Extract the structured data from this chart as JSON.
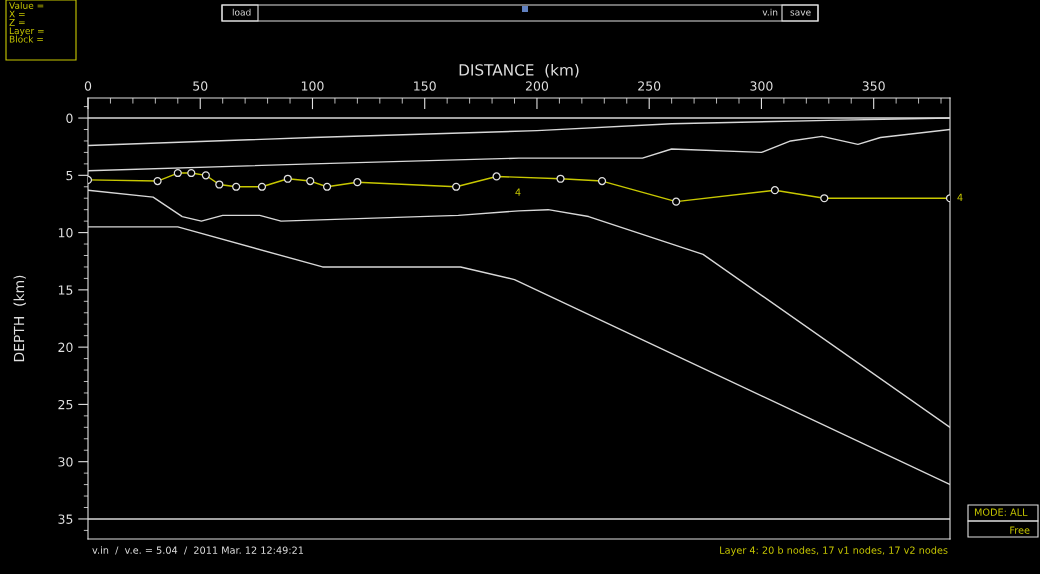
{
  "chart_data": {
    "type": "line",
    "xlabel": "DISTANCE  (km)",
    "ylabel": "DEPTH  (km)",
    "xlim": [
      0,
      384
    ],
    "ylim": [
      36.75,
      -1.75
    ],
    "xticks": [
      0,
      50,
      100,
      150,
      200,
      250,
      300,
      350,
      {
        "value": 10,
        "label": null
      },
      {
        "value": 20,
        "label": null
      },
      {
        "value": 30,
        "label": null
      },
      {
        "value": 40,
        "label": null
      },
      {
        "value": 60,
        "label": null
      },
      {
        "value": 70,
        "label": null
      },
      {
        "value": 80,
        "label": null
      },
      {
        "value": 90,
        "label": null
      },
      {
        "value": 110,
        "label": null
      },
      {
        "value": 120,
        "label": null
      },
      {
        "value": 130,
        "label": null
      },
      {
        "value": 140,
        "label": null
      },
      {
        "value": 160,
        "label": null
      },
      {
        "value": 170,
        "label": null
      },
      {
        "value": 180,
        "label": null
      },
      {
        "value": 190,
        "label": null
      },
      {
        "value": 210,
        "label": null
      },
      {
        "value": 220,
        "label": null
      },
      {
        "value": 230,
        "label": null
      },
      {
        "value": 240,
        "label": null
      },
      {
        "value": 260,
        "label": null
      },
      {
        "value": 270,
        "label": null
      },
      {
        "value": 280,
        "label": null
      },
      {
        "value": 290,
        "label": null
      },
      {
        "value": 310,
        "label": null
      },
      {
        "value": 320,
        "label": null
      },
      {
        "value": 330,
        "label": null
      },
      {
        "value": 340,
        "label": null
      },
      {
        "value": 360,
        "label": null
      },
      {
        "value": 370,
        "label": null
      },
      {
        "value": 380,
        "label": null
      }
    ],
    "yticks": [
      0,
      5,
      10,
      15,
      20,
      25,
      30,
      35,
      {
        "value": -1,
        "label": null
      },
      {
        "value": 1,
        "label": null
      },
      {
        "value": 2,
        "label": null
      },
      {
        "value": 3,
        "label": null
      },
      {
        "value": 4,
        "label": null
      },
      {
        "value": 6,
        "label": null
      },
      {
        "value": 7,
        "label": null
      },
      {
        "value": 8,
        "label": null
      },
      {
        "value": 9,
        "label": null
      },
      {
        "value": 11,
        "label": null
      },
      {
        "value": 12,
        "label": null
      },
      {
        "value": 13,
        "label": null
      },
      {
        "value": 14,
        "label": null
      },
      {
        "value": 16,
        "label": null
      },
      {
        "value": 17,
        "label": null
      },
      {
        "value": 18,
        "label": null
      },
      {
        "value": 19,
        "label": null
      },
      {
        "value": 21,
        "label": null
      },
      {
        "value": 22,
        "label": null
      },
      {
        "value": 23,
        "label": null
      },
      {
        "value": 24,
        "label": null
      },
      {
        "value": 26,
        "label": null
      },
      {
        "value": 27,
        "label": null
      },
      {
        "value": 28,
        "label": null
      },
      {
        "value": 29,
        "label": null
      },
      {
        "value": 31,
        "label": null
      },
      {
        "value": 32,
        "label": null
      },
      {
        "value": 33,
        "label": null
      },
      {
        "value": 34,
        "label": null
      },
      {
        "value": 36,
        "label": null
      }
    ],
    "grid": false,
    "legend": false,
    "line_style": "solid",
    "series": [
      {
        "color": "#d8d8d8",
        "marker": "none",
        "x": [
          0,
          384
        ],
        "values": [
          0,
          0
        ]
      },
      {
        "color": "#d8d8d8",
        "marker": "none",
        "x": [
          0,
          100,
          200,
          260,
          330,
          384
        ],
        "values": [
          2.4,
          1.7,
          1.1,
          0.5,
          0.2,
          0
        ]
      },
      {
        "color": "#d8d8d8",
        "marker": "none",
        "x": [
          0,
          100,
          192,
          247,
          260,
          300,
          313,
          327,
          343,
          353,
          384
        ],
        "values": [
          4.6,
          4.0,
          3.5,
          3.5,
          2.7,
          3.0,
          2.0,
          1.6,
          2.3,
          1.7,
          1.0
        ]
      },
      {
        "color": "#c8c800",
        "marker": "circle",
        "x": [
          0,
          31,
          40,
          46,
          52.5,
          58.5,
          66,
          77.5,
          89,
          99,
          106.5,
          120,
          164,
          182,
          210.5,
          229,
          262,
          306,
          328,
          384
        ],
        "values": [
          5.4,
          5.5,
          4.8,
          4.8,
          5.0,
          5.8,
          6.0,
          6.0,
          5.3,
          5.5,
          6.0,
          5.6,
          6.0,
          5.1,
          5.3,
          5.5,
          7.3,
          6.3,
          7.0,
          7.0
        ]
      },
      {
        "color": "#d8d8d8",
        "marker": "none",
        "x": [
          0,
          29,
          42,
          50.5,
          60,
          76.5,
          86,
          165,
          192,
          205,
          223,
          274,
          384
        ],
        "values": [
          6.3,
          6.9,
          8.6,
          9.0,
          8.5,
          8.5,
          9.0,
          8.5,
          8.1,
          8.0,
          8.6,
          11.9,
          27.0
        ]
      },
      {
        "color": "#d8d8d8",
        "marker": "none",
        "x": [
          0,
          40,
          104.5,
          166,
          190,
          384
        ],
        "values": [
          9.5,
          9.5,
          13.0,
          13.0,
          14.1,
          32.0
        ]
      },
      {
        "color": "#d8d8d8",
        "marker": "none",
        "x": [
          0,
          384
        ],
        "values": [
          35,
          35
        ]
      }
    ],
    "annotations": [
      "4",
      {
        "text": "4",
        "x": 384,
        "y": 7.0
      },
      "v.in  /  v.e. = 5.04  /  2011 Mar. 12 12:49:21",
      "Layer 4: 20 b nodes, 17 v1 nodes, 17 v2 nodes",
      "Value =\nX =\nZ =\nLayer =\nBlock =",
      "load",
      "v.in",
      "save",
      "MODE: ALL",
      "Free"
    ]
  }
}
